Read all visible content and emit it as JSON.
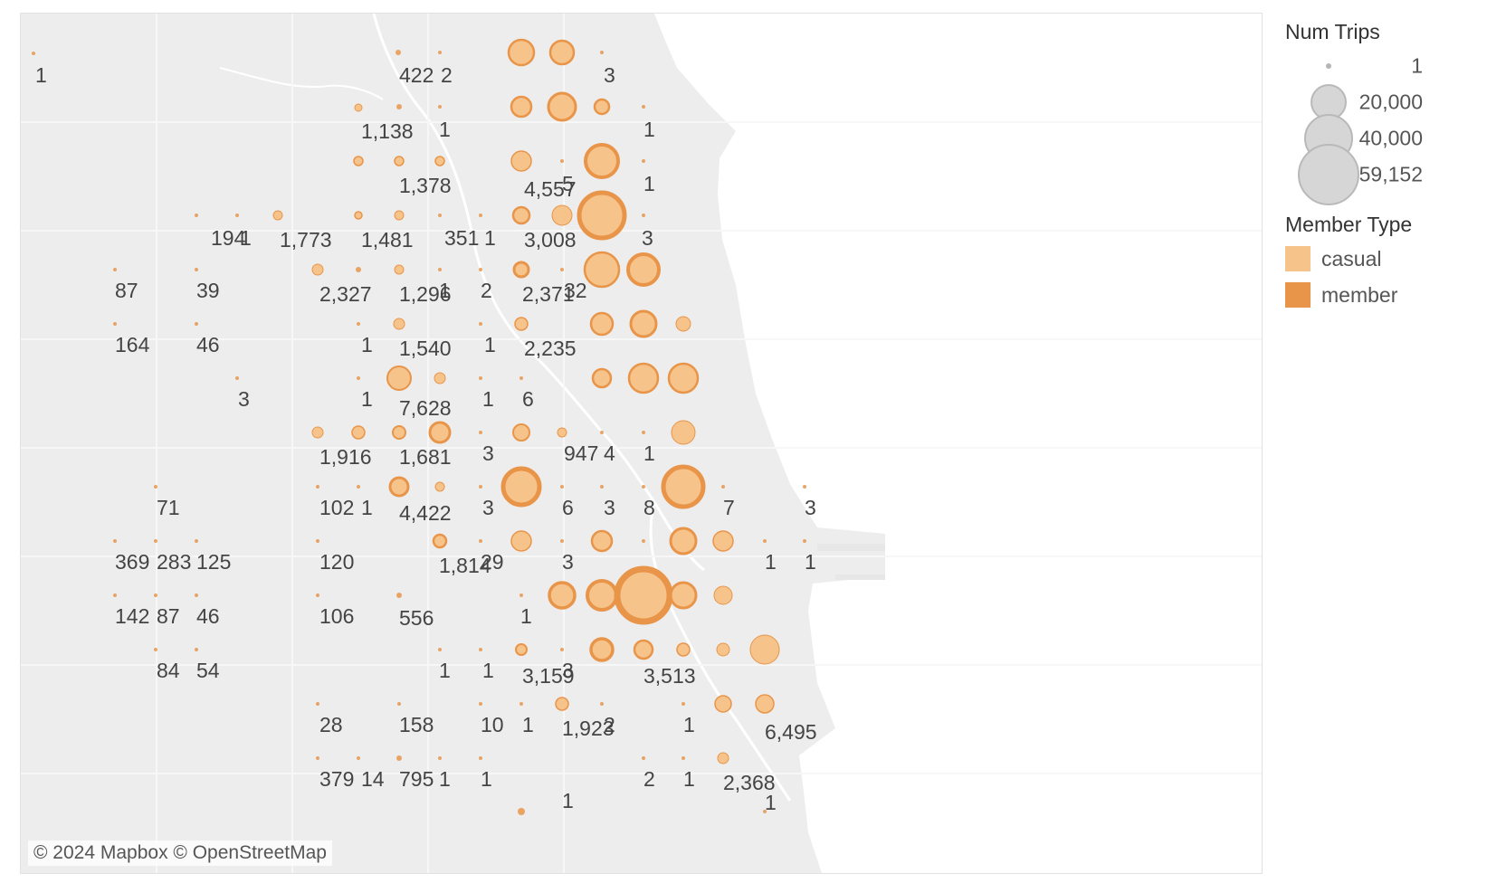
{
  "attribution": "© 2024 Mapbox © OpenStreetMap",
  "legend": {
    "size_title": "Num Trips",
    "sizes": [
      {
        "label": "1",
        "value": 1
      },
      {
        "label": "20,000",
        "value": 20000
      },
      {
        "label": "40,000",
        "value": 40000
      },
      {
        "label": "59,152",
        "value": 59152
      }
    ],
    "type_title": "Member Type",
    "types": [
      {
        "label": "casual",
        "color": "#f6c48a"
      },
      {
        "label": "member",
        "color": "#e8954a"
      }
    ]
  },
  "colors": {
    "casual": "#f6c48a",
    "member": "#e8954a",
    "land": "#ededed",
    "water": "#ffffff",
    "roads": "#f9f9f9",
    "label_text": "#444444"
  },
  "labels": [
    "1",
    "422",
    "2",
    "3",
    "1,138",
    "1",
    "1",
    "1,378",
    "4,557",
    "5",
    "1",
    "194",
    "1",
    "1,773",
    "1,481",
    "351",
    "1",
    "3,008",
    "3",
    "87",
    "39",
    "2,327",
    "1,296",
    "1",
    "2",
    "2,371",
    "32",
    "164",
    "46",
    "1",
    "1,540",
    "1",
    "2,235",
    "3",
    "1",
    "7,628",
    "1",
    "6",
    "1,916",
    "1,681",
    "3",
    "947",
    "4",
    "1",
    "71",
    "102",
    "1",
    "4,422",
    "3",
    "6",
    "3",
    "8",
    "7",
    "3",
    "369",
    "283",
    "125",
    "120",
    "1,814",
    "29",
    "3",
    "1",
    "1",
    "142",
    "87",
    "46",
    "106",
    "556",
    "1",
    "84",
    "54",
    "1",
    "1",
    "3,159",
    "3",
    "3,513",
    "28",
    "158",
    "10",
    "1",
    "1,923",
    "2",
    "1",
    "6,495",
    "379",
    "14",
    "795",
    "1",
    "1",
    "2",
    "1",
    "2,368",
    "1",
    "1"
  ]
}
